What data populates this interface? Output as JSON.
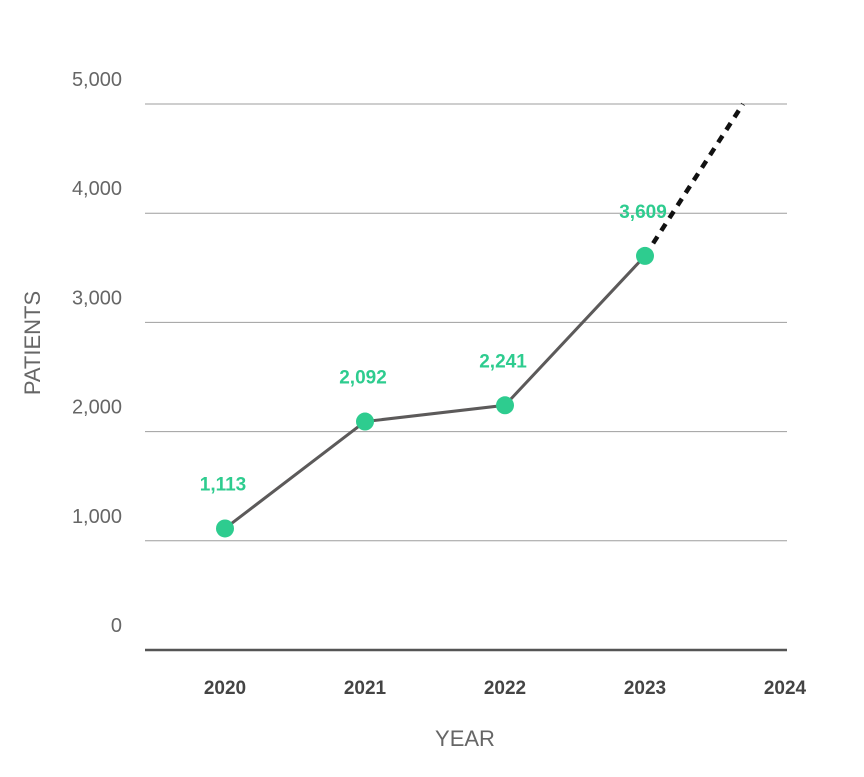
{
  "colors": {
    "accent": "#2ecc8f",
    "line": "#5c5a5a",
    "projection": "#111111",
    "grid": "#9e9e9e"
  },
  "chart_data": {
    "type": "line",
    "title": "",
    "xlabel": "YEAR",
    "ylabel": "PATIENTS",
    "categories": [
      "2020",
      "2021",
      "2022",
      "2023",
      "2024"
    ],
    "series": [
      {
        "name": "Patients",
        "x": [
          "2020",
          "2021",
          "2022",
          "2023"
        ],
        "values": [
          1113,
          2092,
          2241,
          3609
        ],
        "labels": [
          "1,113",
          "2,092",
          "2,241",
          "3,609"
        ]
      }
    ],
    "projection": {
      "style": "dashed",
      "from": {
        "x": 3,
        "y": 3609
      },
      "to": {
        "x": 3.7,
        "y": 5000
      }
    },
    "yticks": [
      0,
      1000,
      2000,
      3000,
      4000,
      5000
    ],
    "ytick_labels": [
      "0",
      "1,000",
      "2,000",
      "3,000",
      "4,000",
      "5,000"
    ],
    "ylim": [
      0,
      5000
    ],
    "grid": true,
    "legend": "none"
  }
}
